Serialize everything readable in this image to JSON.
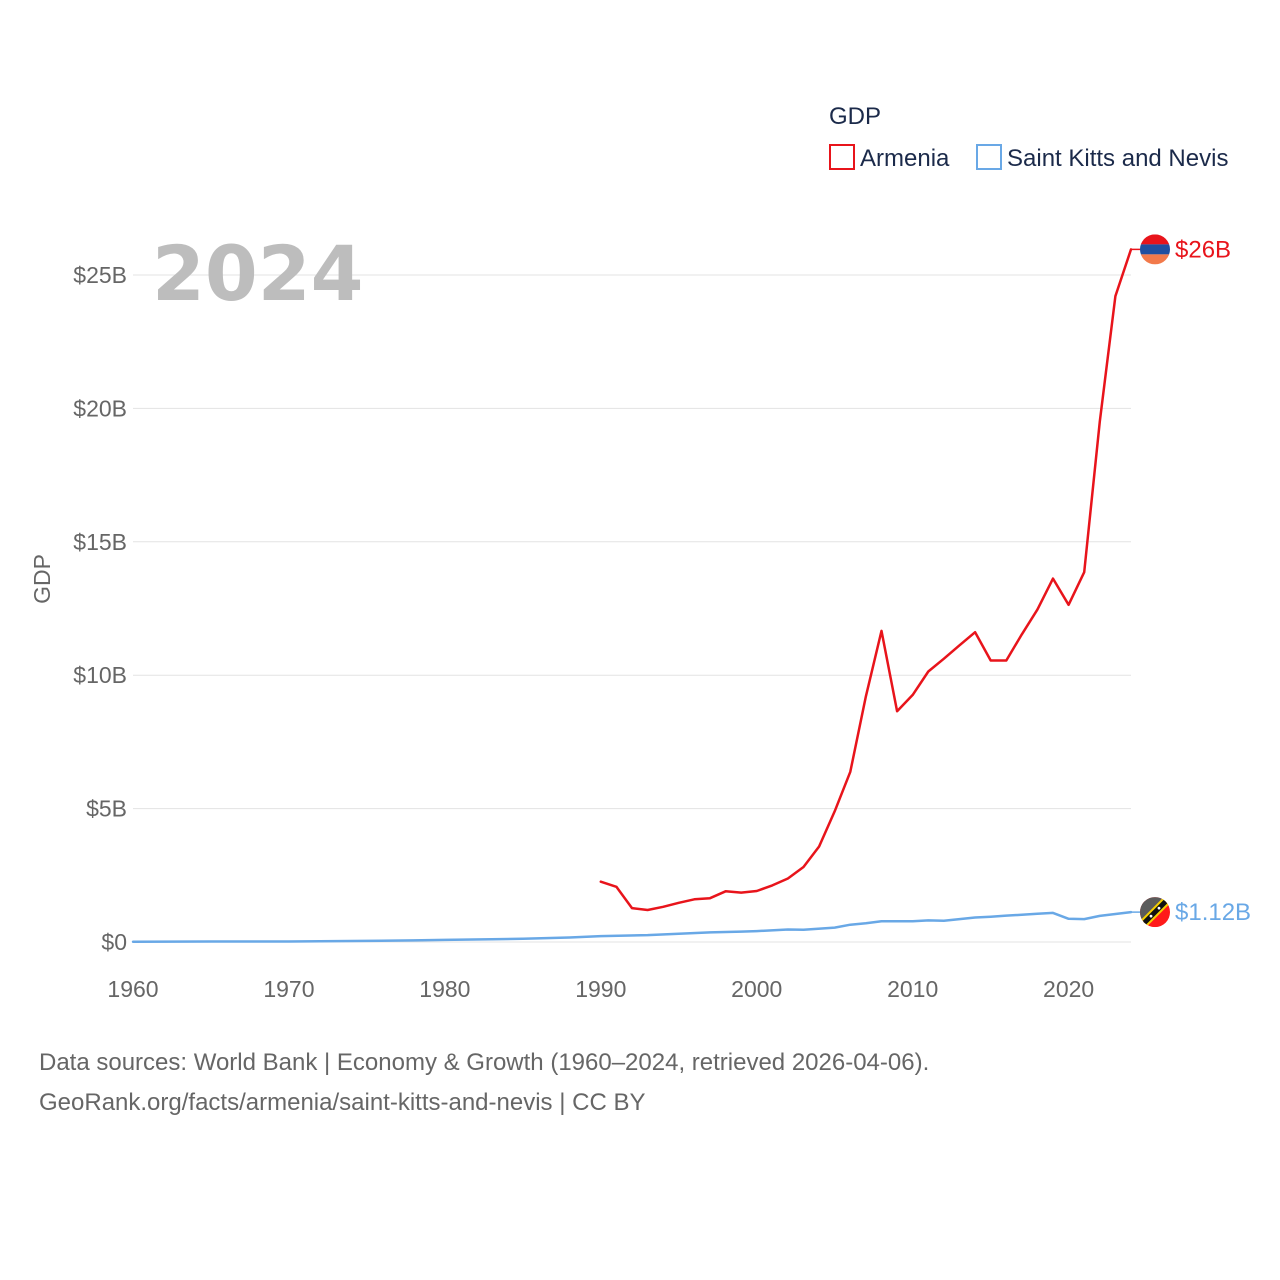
{
  "chart_data": {
    "type": "line",
    "year_label": "2024",
    "ylabel": "GDP",
    "xlabel": "",
    "ylim": [
      0,
      27
    ],
    "xlim": [
      1960,
      2024
    ],
    "x_ticks": [
      1960,
      1970,
      1980,
      1990,
      2000,
      2010,
      2020
    ],
    "x_tick_labels": [
      "1960",
      "1970",
      "1980",
      "1990",
      "2000",
      "2010",
      "2020"
    ],
    "y_ticks": [
      0,
      5,
      10,
      15,
      20,
      25
    ],
    "y_tick_labels": [
      "$0",
      "$5B",
      "$10B",
      "$15B",
      "$20B",
      "$25B"
    ],
    "legend": {
      "title": "GDP",
      "position": "top-right"
    },
    "series": [
      {
        "name": "Armenia",
        "color": "#e8141b",
        "end_label": "$26B",
        "flag": "armenia-flag",
        "x": [
          1990,
          1991,
          1992,
          1993,
          1994,
          1995,
          1996,
          1997,
          1998,
          1999,
          2000,
          2001,
          2002,
          2003,
          2004,
          2005,
          2006,
          2007,
          2008,
          2009,
          2010,
          2011,
          2012,
          2013,
          2014,
          2015,
          2016,
          2017,
          2018,
          2019,
          2020,
          2021,
          2022,
          2023,
          2024
        ],
        "values": [
          2.26,
          2.07,
          1.27,
          1.2,
          1.32,
          1.47,
          1.6,
          1.64,
          1.9,
          1.85,
          1.91,
          2.12,
          2.38,
          2.81,
          3.58,
          4.9,
          6.38,
          9.21,
          11.66,
          8.65,
          9.26,
          10.14,
          10.62,
          11.12,
          11.61,
          10.55,
          10.55,
          11.53,
          12.46,
          13.62,
          12.64,
          13.86,
          19.51,
          24.21,
          25.96
        ]
      },
      {
        "name": "Saint Kitts and Nevis",
        "color": "#69a8e6",
        "end_label": "$1.12B",
        "flag": "saint-kitts-and-nevis-flag",
        "x": [
          1960,
          1965,
          1970,
          1972,
          1975,
          1978,
          1980,
          1983,
          1985,
          1988,
          1990,
          1993,
          1995,
          1997,
          1999,
          2000,
          2002,
          2003,
          2005,
          2006,
          2007,
          2008,
          2009,
          2010,
          2011,
          2012,
          2013,
          2014,
          2015,
          2016,
          2017,
          2018,
          2019,
          2020,
          2021,
          2022,
          2023,
          2024
        ],
        "values": [
          0.01,
          0.02,
          0.02,
          0.03,
          0.04,
          0.06,
          0.08,
          0.1,
          0.12,
          0.17,
          0.22,
          0.26,
          0.31,
          0.36,
          0.39,
          0.41,
          0.47,
          0.46,
          0.54,
          0.65,
          0.7,
          0.78,
          0.78,
          0.78,
          0.81,
          0.8,
          0.86,
          0.92,
          0.95,
          0.99,
          1.02,
          1.06,
          1.09,
          0.87,
          0.86,
          0.98,
          1.05,
          1.12
        ]
      }
    ]
  },
  "footer": {
    "line1": "Data sources: World Bank | Economy & Growth (1960–2024, retrieved 2026-04-06).",
    "line2": "GeoRank.org/facts/armenia/saint-kitts-and-nevis | CC BY"
  }
}
